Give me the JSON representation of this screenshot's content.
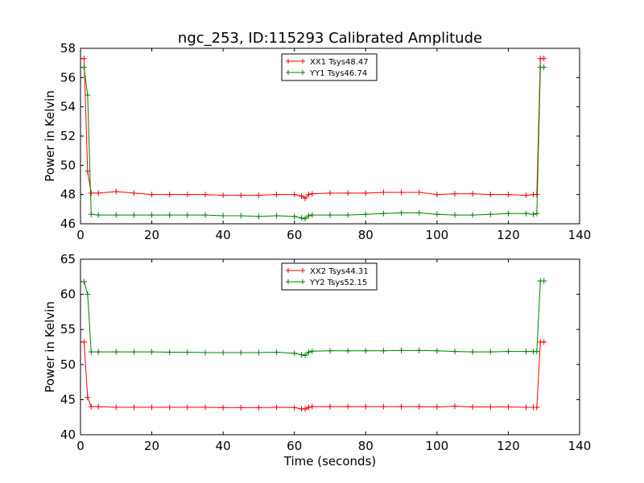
{
  "figure": {
    "title": "ngc_253, ID:115293 Calibrated Amplitude"
  },
  "colors": {
    "series1": "#ff0000",
    "series2": "#008000",
    "frame": "#000000",
    "background": "#ffffff"
  },
  "chart_data": [
    {
      "type": "line",
      "title": "ngc_253, ID:115293 Calibrated Amplitude",
      "xlabel": "",
      "ylabel": "Power in Kelvin",
      "xlim": [
        0,
        140
      ],
      "ylim": [
        46,
        58
      ],
      "xticks": [
        0,
        20,
        40,
        60,
        80,
        100,
        120,
        140
      ],
      "yticks": [
        46,
        48,
        50,
        52,
        54,
        56,
        58
      ],
      "grid": false,
      "legend_position": "top-center",
      "marker": "+",
      "series": [
        {
          "name": "XX1 Tsys48.47",
          "color": "#ff0000",
          "x": [
            0,
            1,
            2,
            3,
            5,
            10,
            15,
            20,
            25,
            30,
            35,
            40,
            45,
            50,
            55,
            60,
            62,
            63,
            64,
            65,
            70,
            75,
            80,
            85,
            90,
            95,
            100,
            105,
            110,
            115,
            120,
            125,
            127,
            128,
            129,
            130
          ],
          "y": [
            57.3,
            57.3,
            49.6,
            48.1,
            48.1,
            48.2,
            48.1,
            48.0,
            48.0,
            48.0,
            48.0,
            47.95,
            47.95,
            47.95,
            48.0,
            48.0,
            47.9,
            47.75,
            48.0,
            48.05,
            48.1,
            48.1,
            48.1,
            48.15,
            48.15,
            48.15,
            48.0,
            48.05,
            48.05,
            48.0,
            48.0,
            47.95,
            48.0,
            48.0,
            57.3,
            57.3
          ]
        },
        {
          "name": "YY1 Tsys46.74",
          "color": "#008000",
          "x": [
            0,
            1,
            2,
            3,
            5,
            10,
            15,
            20,
            25,
            30,
            35,
            40,
            45,
            50,
            55,
            60,
            62,
            63,
            64,
            65,
            70,
            75,
            80,
            85,
            90,
            95,
            100,
            105,
            110,
            115,
            120,
            125,
            127,
            128,
            129,
            130
          ],
          "y": [
            56.7,
            56.7,
            54.8,
            46.65,
            46.6,
            46.6,
            46.6,
            46.6,
            46.6,
            46.6,
            46.6,
            46.55,
            46.55,
            46.5,
            46.55,
            46.5,
            46.4,
            46.35,
            46.55,
            46.6,
            46.6,
            46.6,
            46.65,
            46.7,
            46.75,
            46.75,
            46.65,
            46.6,
            46.6,
            46.65,
            46.7,
            46.7,
            46.65,
            46.7,
            56.7,
            56.7
          ]
        }
      ]
    },
    {
      "type": "line",
      "title": "",
      "xlabel": "Time (seconds)",
      "ylabel": "Power in Kelvin",
      "xlim": [
        0,
        140
      ],
      "ylim": [
        40,
        65
      ],
      "xticks": [
        0,
        20,
        40,
        60,
        80,
        100,
        120,
        140
      ],
      "yticks": [
        40,
        45,
        50,
        55,
        60,
        65
      ],
      "grid": false,
      "legend_position": "top-center",
      "marker": "+",
      "series": [
        {
          "name": "XX2 Tsys44.31",
          "color": "#ff0000",
          "x": [
            0,
            1,
            2,
            3,
            5,
            10,
            15,
            20,
            25,
            30,
            35,
            40,
            45,
            50,
            55,
            60,
            62,
            63,
            64,
            65,
            70,
            75,
            80,
            85,
            90,
            95,
            100,
            105,
            110,
            115,
            120,
            125,
            127,
            128,
            129,
            130
          ],
          "y": [
            53.2,
            53.2,
            45.3,
            44.0,
            44.0,
            43.9,
            43.9,
            43.9,
            43.9,
            43.9,
            43.9,
            43.85,
            43.85,
            43.85,
            43.9,
            43.85,
            43.7,
            43.65,
            43.9,
            44.0,
            44.0,
            44.0,
            44.0,
            44.0,
            44.0,
            44.0,
            43.95,
            44.05,
            43.95,
            43.95,
            43.95,
            43.9,
            43.9,
            43.9,
            53.2,
            53.2
          ]
        },
        {
          "name": "YY2 Tsys52.15",
          "color": "#008000",
          "x": [
            0,
            1,
            2,
            3,
            5,
            10,
            15,
            20,
            25,
            30,
            35,
            40,
            45,
            50,
            55,
            60,
            62,
            63,
            64,
            65,
            70,
            75,
            80,
            85,
            90,
            95,
            100,
            105,
            110,
            115,
            120,
            125,
            127,
            128,
            129,
            130
          ],
          "y": [
            61.8,
            61.8,
            60.0,
            51.8,
            51.8,
            51.8,
            51.8,
            51.8,
            51.75,
            51.75,
            51.7,
            51.7,
            51.7,
            51.7,
            51.75,
            51.6,
            51.4,
            51.3,
            51.75,
            51.9,
            51.95,
            51.95,
            51.95,
            51.95,
            52.0,
            52.0,
            51.95,
            51.85,
            51.8,
            51.8,
            51.85,
            51.85,
            51.85,
            51.85,
            61.9,
            61.9
          ]
        }
      ]
    }
  ]
}
